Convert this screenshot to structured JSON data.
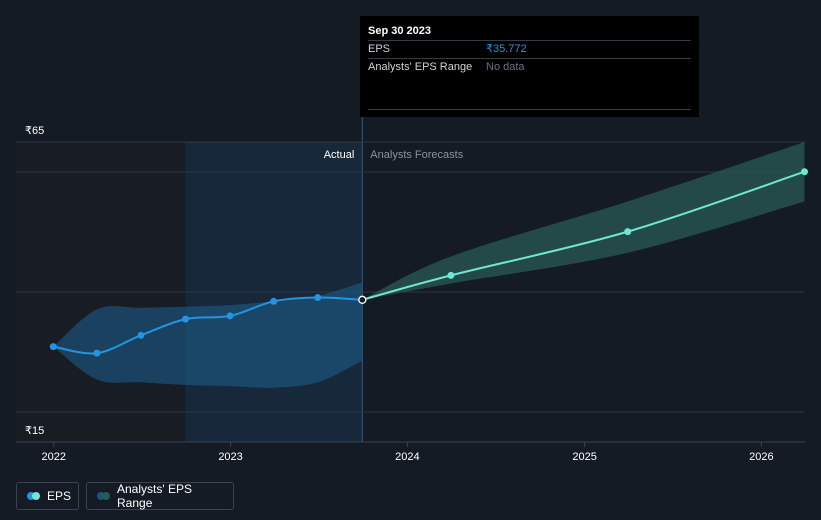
{
  "tooltip": {
    "date": "Sep 30 2023",
    "rows": [
      {
        "label": "EPS",
        "value": "₹35.772"
      },
      {
        "label": "Analysts' EPS Range",
        "value": "No data"
      }
    ]
  },
  "legend": {
    "eps_label": "EPS",
    "range_label": "Analysts' EPS Range"
  },
  "colors": {
    "actual_line": "#2394df",
    "forecast_line": "#6ee7d1",
    "actual_band": "#1c5680",
    "forecast_band": "#2a5a56",
    "background": "#151b24"
  },
  "chart_data": {
    "type": "line",
    "region_labels": {
      "actual": "Actual",
      "forecast": "Analysts Forecasts"
    },
    "y_ticks": [
      {
        "value": 65,
        "label": "₹65"
      },
      {
        "value": 15,
        "label": "₹15"
      }
    ],
    "x_ticks": [
      {
        "value": "2022-01-01",
        "label": "2022"
      },
      {
        "value": "2023-01-01",
        "label": "2023"
      },
      {
        "value": "2024-01-01",
        "label": "2024"
      },
      {
        "value": "2025-01-01",
        "label": "2025"
      },
      {
        "value": "2026-01-01",
        "label": "2026"
      }
    ],
    "ylim": [
      15,
      65
    ],
    "xlim": [
      "2021-10-15",
      "2026-04-01"
    ],
    "grid": true,
    "series": [
      {
        "name": "EPS",
        "role": "actual",
        "points": [
          {
            "x": "2021-12-31",
            "y": 27.1
          },
          {
            "x": "2022-03-31",
            "y": 25.9
          },
          {
            "x": "2022-06-30",
            "y": 29.2
          },
          {
            "x": "2022-09-30",
            "y": 32.2
          },
          {
            "x": "2022-12-31",
            "y": 32.8
          },
          {
            "x": "2023-03-31",
            "y": 35.5
          },
          {
            "x": "2023-06-30",
            "y": 36.2
          },
          {
            "x": "2023-09-30",
            "y": 35.772
          }
        ]
      },
      {
        "name": "EPS",
        "role": "forecast",
        "points": [
          {
            "x": "2023-09-30",
            "y": 35.772
          },
          {
            "x": "2024-03-31",
            "y": 40.3
          },
          {
            "x": "2025-03-31",
            "y": 48.4
          },
          {
            "x": "2026-03-31",
            "y": 59.5
          }
        ]
      }
    ],
    "ranges": [
      {
        "name": "Analysts' EPS Range",
        "role": "actual",
        "x": [
          "2021-12-31",
          "2022-03-31",
          "2022-06-30",
          "2022-09-30",
          "2022-12-31",
          "2023-03-31",
          "2023-06-30",
          "2023-09-30"
        ],
        "low": [
          27.1,
          21.0,
          20.5,
          20.0,
          19.8,
          19.5,
          20.5,
          24.5
        ],
        "high": [
          27.1,
          34.0,
          34.3,
          34.5,
          34.8,
          35.5,
          36.5,
          39.0
        ]
      },
      {
        "name": "Analysts' EPS Range",
        "role": "forecast",
        "x": [
          "2023-09-30",
          "2024-03-31",
          "2025-03-31",
          "2026-03-31"
        ],
        "low": [
          35.772,
          38.8,
          44.5,
          54.0
        ],
        "high": [
          35.772,
          43.8,
          54.0,
          65.0
        ]
      }
    ]
  }
}
